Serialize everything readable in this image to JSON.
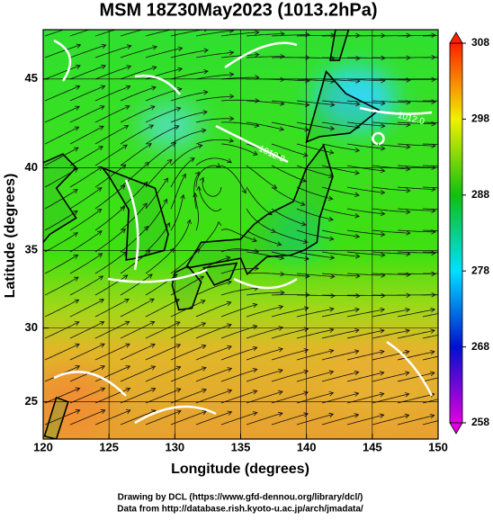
{
  "map": {
    "title": "MSM 18Z30May2023 (1013.2hPa)",
    "x_label": "Longitude (degrees)",
    "y_label": "Latitude  (degrees)",
    "xlim": [
      120,
      150
    ],
    "ylim": [
      22.4,
      47.6
    ],
    "xticks": [
      120,
      125,
      130,
      135,
      140,
      145,
      150
    ],
    "yticks": [
      25,
      30,
      35,
      40,
      45
    ],
    "projection": "mercator",
    "colorbar": {
      "lim": [
        258,
        308
      ],
      "ticks": [
        258,
        268,
        278,
        288,
        298,
        308
      ],
      "colors": [
        "#e000e0",
        "#0010d0",
        "#00e0ff",
        "#10c010",
        "#f0f000",
        "#ff2000"
      ]
    },
    "contour_labels": [
      "1012.0",
      "1012.0"
    ],
    "credits": [
      "Drawing by DCL (https://www.gfd-dennou.org/library/dcl/)",
      "Data from http://database.rish.kyoto-u.ac.jp/arch/jmadata/"
    ]
  }
}
